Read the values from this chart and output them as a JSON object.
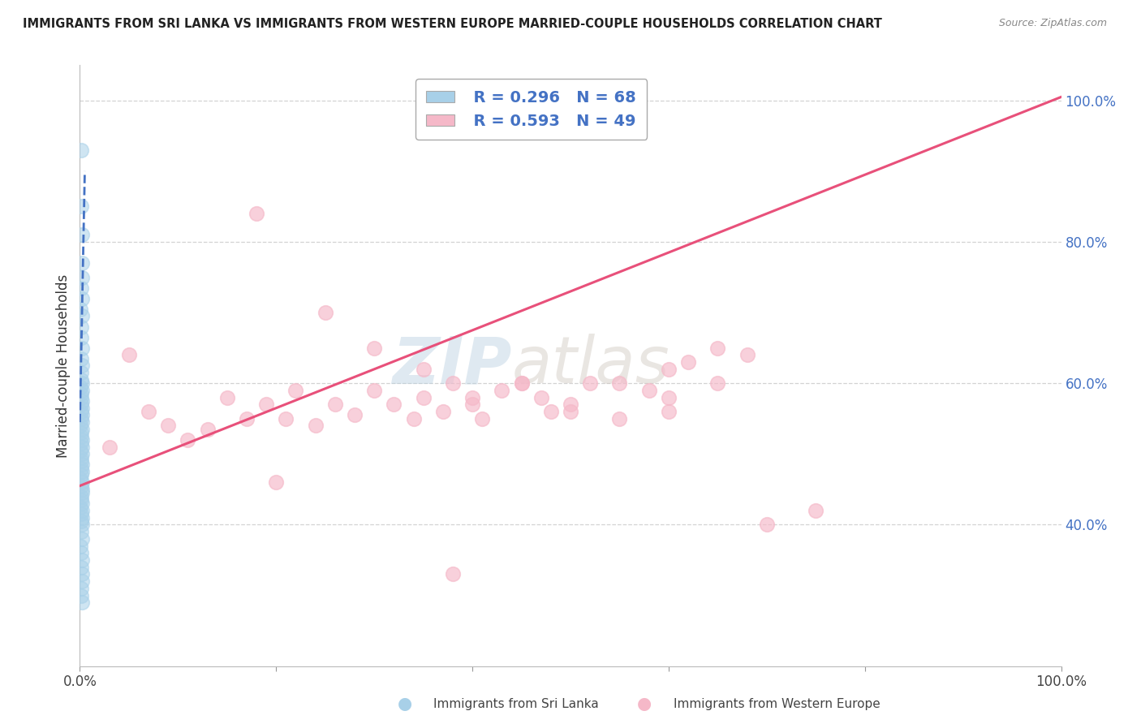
{
  "title": "IMMIGRANTS FROM SRI LANKA VS IMMIGRANTS FROM WESTERN EUROPE MARRIED-COUPLE HOUSEHOLDS CORRELATION CHART",
  "source": "Source: ZipAtlas.com",
  "ylabel": "Married-couple Households",
  "watermark_zip": "ZIP",
  "watermark_atlas": "atlas",
  "xmin": 0.0,
  "xmax": 100.0,
  "ymin": 20.0,
  "ymax": 105.0,
  "yticks": [
    40.0,
    60.0,
    80.0,
    100.0
  ],
  "ytick_labels": [
    "40.0%",
    "60.0%",
    "80.0%",
    "100.0%"
  ],
  "legend_blue_label": "Immigrants from Sri Lanka",
  "legend_pink_label": "Immigrants from Western Europe",
  "R_blue": 0.296,
  "N_blue": 68,
  "R_pink": 0.593,
  "N_pink": 49,
  "blue_color": "#a8d0e8",
  "pink_color": "#f5b8c8",
  "blue_line_color": "#4472c4",
  "pink_line_color": "#e8507a",
  "grid_color": "#c8c8c8",
  "background_color": "#ffffff",
  "title_color": "#222222",
  "tick_label_color": "#4472c4",
  "sri_lanka_x": [
    0.15,
    0.12,
    0.18,
    0.2,
    0.25,
    0.1,
    0.22,
    0.08,
    0.18,
    0.12,
    0.15,
    0.2,
    0.1,
    0.25,
    0.15,
    0.12,
    0.18,
    0.08,
    0.22,
    0.15,
    0.1,
    0.2,
    0.12,
    0.18,
    0.15,
    0.25,
    0.1,
    0.22,
    0.08,
    0.18,
    0.12,
    0.15,
    0.2,
    0.1,
    0.25,
    0.08,
    0.22,
    0.15,
    0.12,
    0.18,
    0.1,
    0.2,
    0.15,
    0.08,
    0.25,
    0.12,
    0.18,
    0.22,
    0.1,
    0.15,
    0.2,
    0.08,
    0.25,
    0.12,
    0.18,
    0.15,
    0.22,
    0.1,
    0.2,
    0.08,
    0.15,
    0.25,
    0.12,
    0.18,
    0.22,
    0.1,
    0.15,
    0.2
  ],
  "sri_lanka_y": [
    93.0,
    85.0,
    81.0,
    77.0,
    75.0,
    73.5,
    72.0,
    70.5,
    69.5,
    68.0,
    66.5,
    65.0,
    63.5,
    62.5,
    61.5,
    60.5,
    60.0,
    59.5,
    59.0,
    58.5,
    58.0,
    57.5,
    57.0,
    56.5,
    56.0,
    55.5,
    55.0,
    54.5,
    54.0,
    53.5,
    53.0,
    52.5,
    52.0,
    51.5,
    51.0,
    50.5,
    50.0,
    49.5,
    49.0,
    48.5,
    48.0,
    47.5,
    47.0,
    46.5,
    46.0,
    45.5,
    45.0,
    44.5,
    44.0,
    43.5,
    43.0,
    42.5,
    42.0,
    41.5,
    41.0,
    40.5,
    40.0,
    39.0,
    38.0,
    37.0,
    36.0,
    35.0,
    34.0,
    33.0,
    32.0,
    31.0,
    30.0,
    29.0
  ],
  "western_europe_x": [
    3.0,
    5.0,
    7.0,
    9.0,
    11.0,
    13.0,
    15.0,
    17.0,
    19.0,
    21.0,
    22.0,
    24.0,
    26.0,
    28.0,
    30.0,
    32.0,
    34.0,
    35.0,
    37.0,
    38.0,
    40.0,
    41.0,
    43.0,
    45.0,
    47.0,
    48.0,
    50.0,
    52.0,
    55.0,
    58.0,
    60.0,
    62.0,
    65.0,
    68.0,
    18.0,
    25.0,
    30.0,
    35.0,
    40.0,
    45.0,
    50.0,
    55.0,
    60.0,
    65.0,
    60.0,
    38.0,
    20.0,
    70.0,
    75.0
  ],
  "western_europe_y": [
    51.0,
    64.0,
    56.0,
    54.0,
    52.0,
    53.5,
    58.0,
    55.0,
    57.0,
    55.0,
    59.0,
    54.0,
    57.0,
    55.5,
    59.0,
    57.0,
    55.0,
    58.0,
    56.0,
    60.0,
    57.0,
    55.0,
    59.0,
    60.0,
    58.0,
    56.0,
    57.0,
    60.0,
    60.0,
    59.0,
    62.0,
    63.0,
    65.0,
    64.0,
    84.0,
    70.0,
    65.0,
    62.0,
    58.0,
    60.0,
    56.0,
    55.0,
    58.0,
    60.0,
    56.0,
    33.0,
    46.0,
    40.0,
    42.0
  ],
  "blue_regline_x0": 0.0,
  "blue_regline_y0": 54.5,
  "blue_regline_x1": 0.5,
  "blue_regline_y1": 90.0,
  "pink_regline_x0": 0.0,
  "pink_regline_y0": 45.5,
  "pink_regline_x1": 100.0,
  "pink_regline_y1": 100.5
}
